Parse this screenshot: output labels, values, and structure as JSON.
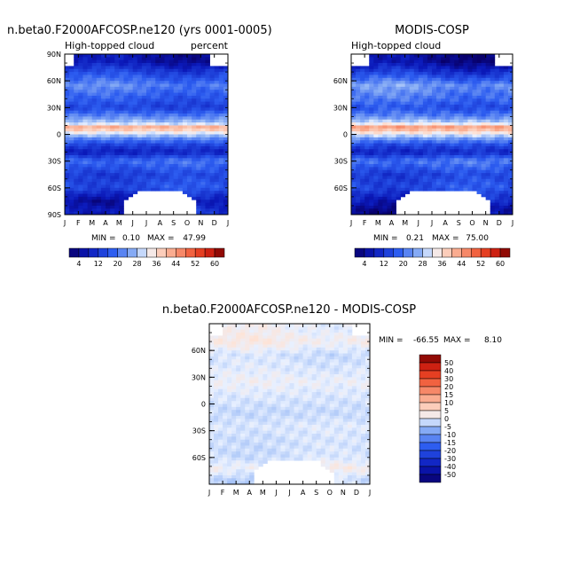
{
  "chart_data": [
    {
      "type": "heatmap",
      "title": "n.beta0.F2000AFCOSP.ne120 (yrs 0001-0005)",
      "subtitle": "High-topped cloud",
      "units": "percent",
      "x_ticks": [
        "J",
        "F",
        "M",
        "A",
        "M",
        "J",
        "J",
        "A",
        "S",
        "O",
        "N",
        "D",
        "J"
      ],
      "y_ticks": [
        "90N",
        "60N",
        "30N",
        "0",
        "30S",
        "60S",
        "90S"
      ],
      "y_values": [
        90,
        60,
        30,
        0,
        -30,
        -60,
        -90
      ],
      "stats": {
        "min_label": "MIN =",
        "min": "0.10",
        "max_label": "MAX =",
        "max": "47.99"
      },
      "colorbar_labels": [
        "4",
        "12",
        "20",
        "28",
        "36",
        "44",
        "52",
        "60"
      ],
      "colorbar_levels": [
        0,
        4,
        8,
        12,
        16,
        20,
        24,
        28,
        32,
        36,
        40,
        44,
        48,
        52,
        56,
        60,
        64
      ],
      "annual_profile": [
        [
          -85,
          10
        ],
        [
          -75,
          6
        ],
        [
          -60,
          16
        ],
        [
          -45,
          14
        ],
        [
          -30,
          20
        ],
        [
          -20,
          9
        ],
        [
          -12,
          14
        ],
        [
          -5,
          22
        ],
        [
          0,
          30
        ],
        [
          5,
          38
        ],
        [
          8,
          42
        ],
        [
          12,
          30
        ],
        [
          20,
          22
        ],
        [
          30,
          14
        ],
        [
          40,
          17
        ],
        [
          55,
          22
        ],
        [
          70,
          14
        ],
        [
          82,
          6
        ]
      ]
    },
    {
      "type": "heatmap",
      "title": "MODIS-COSP",
      "subtitle": "High-topped cloud",
      "x_ticks": [
        "J",
        "F",
        "M",
        "A",
        "M",
        "J",
        "J",
        "A",
        "S",
        "O",
        "N",
        "D",
        "J"
      ],
      "y_ticks": [
        "60N",
        "30N",
        "0",
        "30S",
        "60S"
      ],
      "y_values": [
        60,
        30,
        0,
        -30,
        -60
      ],
      "stats": {
        "min_label": "MIN =",
        "min": "0.21",
        "max_label": "MAX =",
        "max": "75.00"
      },
      "colorbar_labels": [
        "4",
        "12",
        "20",
        "28",
        "36",
        "44",
        "52",
        "60"
      ],
      "colorbar_levels": [
        0,
        4,
        8,
        12,
        16,
        20,
        24,
        28,
        32,
        36,
        40,
        44,
        48,
        52,
        56,
        60,
        64
      ],
      "annual_profile": [
        [
          -85,
          5
        ],
        [
          -75,
          9
        ],
        [
          -60,
          16
        ],
        [
          -45,
          14
        ],
        [
          -30,
          21
        ],
        [
          -20,
          10
        ],
        [
          -12,
          15
        ],
        [
          -5,
          24
        ],
        [
          0,
          32
        ],
        [
          5,
          40
        ],
        [
          8,
          44
        ],
        [
          12,
          32
        ],
        [
          20,
          22
        ],
        [
          30,
          16
        ],
        [
          40,
          20
        ],
        [
          55,
          24
        ],
        [
          70,
          12
        ],
        [
          82,
          4
        ]
      ]
    },
    {
      "type": "heatmap",
      "title": "n.beta0.F2000AFCOSP.ne120 - MODIS-COSP",
      "x_ticks": [
        "J",
        "F",
        "M",
        "A",
        "M",
        "J",
        "J",
        "A",
        "S",
        "O",
        "N",
        "D",
        "J"
      ],
      "y_ticks": [
        "60N",
        "30N",
        "0",
        "30S",
        "60S"
      ],
      "y_values": [
        60,
        30,
        0,
        -30,
        -60
      ],
      "stats": {
        "min_label": "MIN =",
        "min": "-66.55",
        "max_label": "MAX =",
        "max": "8.10"
      },
      "colorbar_labels": [
        "50",
        "40",
        "30",
        "20",
        "15",
        "10",
        "5",
        "0",
        "-5",
        "-10",
        "-15",
        "-20",
        "-30",
        "-40",
        "-50"
      ],
      "colorbar_levels": [
        50,
        40,
        30,
        20,
        15,
        10,
        5,
        0,
        -5,
        -10,
        -15,
        -20,
        -30,
        -40,
        -50
      ],
      "annual_profile": [
        [
          -85,
          -3
        ],
        [
          -72,
          2
        ],
        [
          -60,
          -2
        ],
        [
          -40,
          -2
        ],
        [
          -25,
          -1
        ],
        [
          -10,
          -3
        ],
        [
          0,
          -2
        ],
        [
          10,
          -1
        ],
        [
          25,
          1
        ],
        [
          40,
          -1
        ],
        [
          55,
          -2
        ],
        [
          70,
          3
        ],
        [
          82,
          1
        ]
      ]
    }
  ]
}
